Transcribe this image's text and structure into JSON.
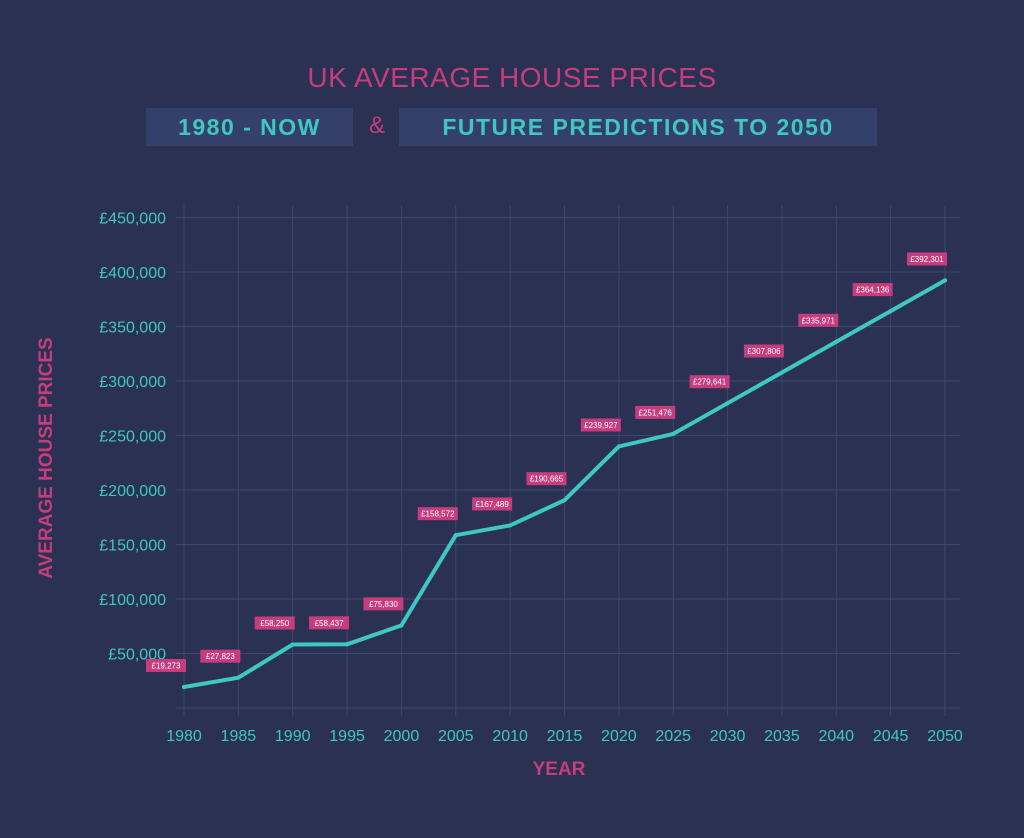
{
  "header": {
    "title": "UK AVERAGE HOUSE PRICES",
    "subtitle_left": "1980 - NOW",
    "ampersand": "&",
    "subtitle_right": "FUTURE PREDICTIONS TO 2050"
  },
  "colors": {
    "background": "#2a3152",
    "line": "#3fc7c2",
    "accent": "#c53d7e",
    "label_box": "#c53d7e",
    "grid": "#3d4670"
  },
  "chart_data": {
    "type": "line",
    "title": "UK AVERAGE HOUSE PRICES",
    "xlabel": "YEAR",
    "ylabel": "AVERAGE HOUSE PRICES",
    "x": [
      1980,
      1985,
      1990,
      1995,
      2000,
      2005,
      2010,
      2015,
      2020,
      2025,
      2030,
      2035,
      2040,
      2045,
      2050
    ],
    "values": [
      19273,
      27823,
      58250,
      58437,
      75830,
      158572,
      167489,
      190665,
      239927,
      251476,
      279641,
      307806,
      335971,
      364136,
      392301
    ],
    "data_labels": [
      "£19,273",
      "£27,823",
      "£58,250",
      "£58,437",
      "£75,830",
      "£158,572",
      "£167,489",
      "£190,665",
      "£239,927",
      "£251,476",
      "£279,641",
      "£307,806",
      "£335,971",
      "£364,136",
      "£392,301"
    ],
    "y_ticks": [
      50000,
      100000,
      150000,
      200000,
      250000,
      300000,
      350000,
      400000,
      450000
    ],
    "y_tick_labels": [
      "£50,000",
      "£100,000",
      "£150,000",
      "£200,000",
      "£250,000",
      "£300,000",
      "£350,000",
      "£400,000",
      "£450,000"
    ],
    "x_tick_labels": [
      "1980",
      "1985",
      "1990",
      "1995",
      "2000",
      "2005",
      "2010",
      "2015",
      "2020",
      "2025",
      "2030",
      "2035",
      "2040",
      "2045",
      "2050"
    ],
    "xlim": [
      1980,
      2050
    ],
    "ylim": [
      0,
      450000
    ],
    "grid": true,
    "legend": "none"
  }
}
